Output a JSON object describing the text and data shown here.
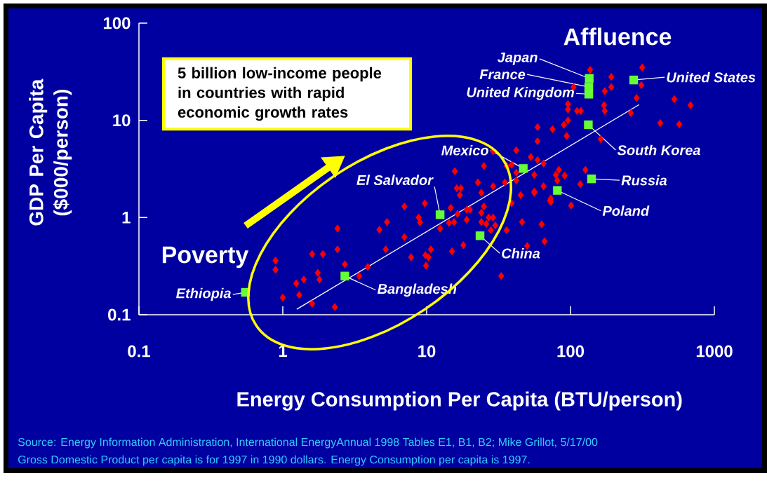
{
  "chart_data": {
    "type": "scatter",
    "xlabel": "Energy Consumption Per Capita (BTU/person)",
    "ylabel": "GDP Per Capita ($000/person)",
    "log": "xy",
    "xlim": [
      0.1,
      1000
    ],
    "ylim": [
      0.1,
      100
    ],
    "xticks": [
      0.1,
      1,
      10,
      100,
      1000
    ],
    "yticks": [
      0.1,
      1,
      10,
      100
    ],
    "series": [
      {
        "type": "scatter",
        "marker": "diamond",
        "color": "#ff0000",
        "x": [
          2.4,
          2.4,
          1.6,
          1.9,
          2.7,
          0.89,
          0.89,
          1.75,
          1.4,
          1.24,
          1.8,
          1.3,
          1.0,
          1.6,
          2.3,
          3.4,
          42,
          29,
          53,
          25,
          36,
          39,
          15.7,
          59,
          42,
          56,
          22.7,
          16.2,
          17.3,
          29,
          35,
          42,
          65,
          17,
          24,
          45,
          56,
          72,
          39,
          7.0,
          9.7,
          14.7,
          19,
          20,
          25,
          24,
          16.4,
          8.8,
          9.0,
          5.3,
          14.3,
          15.5,
          19,
          24,
          27,
          29,
          26,
          30,
          28,
          12.4,
          46,
          63,
          36,
          4.7,
          7.0,
          5.2,
          10.7,
          9.8,
          10.3,
          7.8,
          15,
          18,
          9.9,
          50,
          66,
          3.9,
          33,
          137,
          192,
          315,
          311,
          192,
          173,
          288,
          105,
          96,
          96,
          171,
          173,
          111,
          118,
          263,
          527,
          683,
          421,
          570,
          96,
          90,
          75,
          59,
          59,
          94,
          162,
          83,
          65,
          79,
          81,
          91,
          127,
          117,
          56,
          73,
          73,
          101
        ],
        "values": [
          0.77,
          0.47,
          0.42,
          0.42,
          0.33,
          0.36,
          0.29,
          0.27,
          0.23,
          0.21,
          0.23,
          0.16,
          0.15,
          0.13,
          0.12,
          0.25,
          4.9,
          4.8,
          4.2,
          3.4,
          3.4,
          3.5,
          3.0,
          3.9,
          2.9,
          2.75,
          2.3,
          2.0,
          2.0,
          2.1,
          2.3,
          2.4,
          2.1,
          1.7,
          1.8,
          1.7,
          1.8,
          1.5,
          1.4,
          1.3,
          1.4,
          1.26,
          1.2,
          1.2,
          1.3,
          1.12,
          1.09,
          1.0,
          0.89,
          0.9,
          0.88,
          0.9,
          0.95,
          0.9,
          1.0,
          1.0,
          0.86,
          0.83,
          0.74,
          0.77,
          0.9,
          0.85,
          0.74,
          0.75,
          0.63,
          0.47,
          0.47,
          0.41,
          0.39,
          0.39,
          0.45,
          0.52,
          0.32,
          0.51,
          0.57,
          0.31,
          0.25,
          33,
          28,
          35,
          23,
          22,
          20,
          17,
          22,
          14.7,
          12.9,
          14.3,
          12.5,
          12.5,
          12.5,
          11.9,
          16.5,
          14.3,
          9.4,
          9.1,
          10,
          9.0,
          8.1,
          8.5,
          6.1,
          6.9,
          6.4,
          3.1,
          3.6,
          2.75,
          2.4,
          2.7,
          3.1,
          2.2,
          1.85,
          1.57,
          1.44,
          1.33
        ]
      },
      {
        "type": "scatter",
        "marker": "square",
        "color": "#66ff33",
        "x": [
          135,
          134,
          134,
          275,
          133,
          140,
          81,
          47,
          12.4,
          23.5,
          2.7,
          0.55
        ],
        "values": [
          27,
          22,
          18.6,
          26,
          9.0,
          2.5,
          1.9,
          3.2,
          1.07,
          0.65,
          0.25,
          0.17
        ]
      },
      {
        "type": "line",
        "color": "#ffffff",
        "x": [
          1.25,
          300
        ],
        "values": [
          0.114,
          14.5
        ]
      }
    ],
    "annotations": [
      {
        "text": "Japan",
        "x": 135,
        "y": 27
      },
      {
        "text": "France",
        "x": 134,
        "y": 22
      },
      {
        "text": "United Kingdom",
        "x": 134,
        "y": 18.6
      },
      {
        "text": "United States",
        "x": 275,
        "y": 26
      },
      {
        "text": "South Korea",
        "x": 133,
        "y": 9.0
      },
      {
        "text": "Russia",
        "x": 140,
        "y": 2.5
      },
      {
        "text": "Poland",
        "x": 81,
        "y": 1.9
      },
      {
        "text": "Mexico",
        "x": 47,
        "y": 3.2
      },
      {
        "text": "El Salvador",
        "x": 12.4,
        "y": 1.07
      },
      {
        "text": "China",
        "x": 23.5,
        "y": 0.65
      },
      {
        "text": "Bangladesh",
        "x": 2.7,
        "y": 0.25
      },
      {
        "text": "Ethiopia",
        "x": 0.55,
        "y": 0.17
      },
      "Affluence",
      "Poverty",
      "5 billion low-income people in countries with rapid economic growth rates",
      "Source:  Energy Information Administration, International EnergyAnnual 1998 Tables E1, B1, B2; Mike Grillot, 5/17/00",
      "Gross Domestic Product per capita is for 1997 in 1990 dollars. Energy Consumption per capita is 1997."
    ]
  }
}
